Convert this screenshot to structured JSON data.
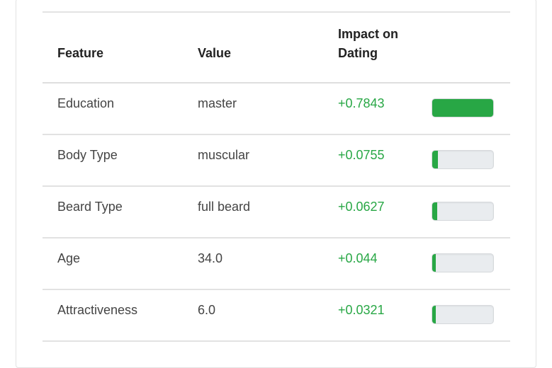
{
  "table": {
    "headers": {
      "feature": "Feature",
      "value": "Value",
      "impact": "Impact on Dating"
    },
    "rows": [
      {
        "feature": "Education",
        "value": "master",
        "impact": "+0.7843",
        "bar_fraction": 1.0
      },
      {
        "feature": "Body Type",
        "value": "muscular",
        "impact": "+0.0755",
        "bar_fraction": 0.0963
      },
      {
        "feature": "Beard Type",
        "value": "full beard",
        "impact": "+0.0627",
        "bar_fraction": 0.08
      },
      {
        "feature": "Age",
        "value": "34.0",
        "impact": "+0.044",
        "bar_fraction": 0.0561
      },
      {
        "feature": "Attractiveness",
        "value": "6.0",
        "impact": "+0.0321",
        "bar_fraction": 0.0409
      }
    ]
  },
  "colors": {
    "positive": "#28a745",
    "bar_track": "#e9ecef"
  }
}
